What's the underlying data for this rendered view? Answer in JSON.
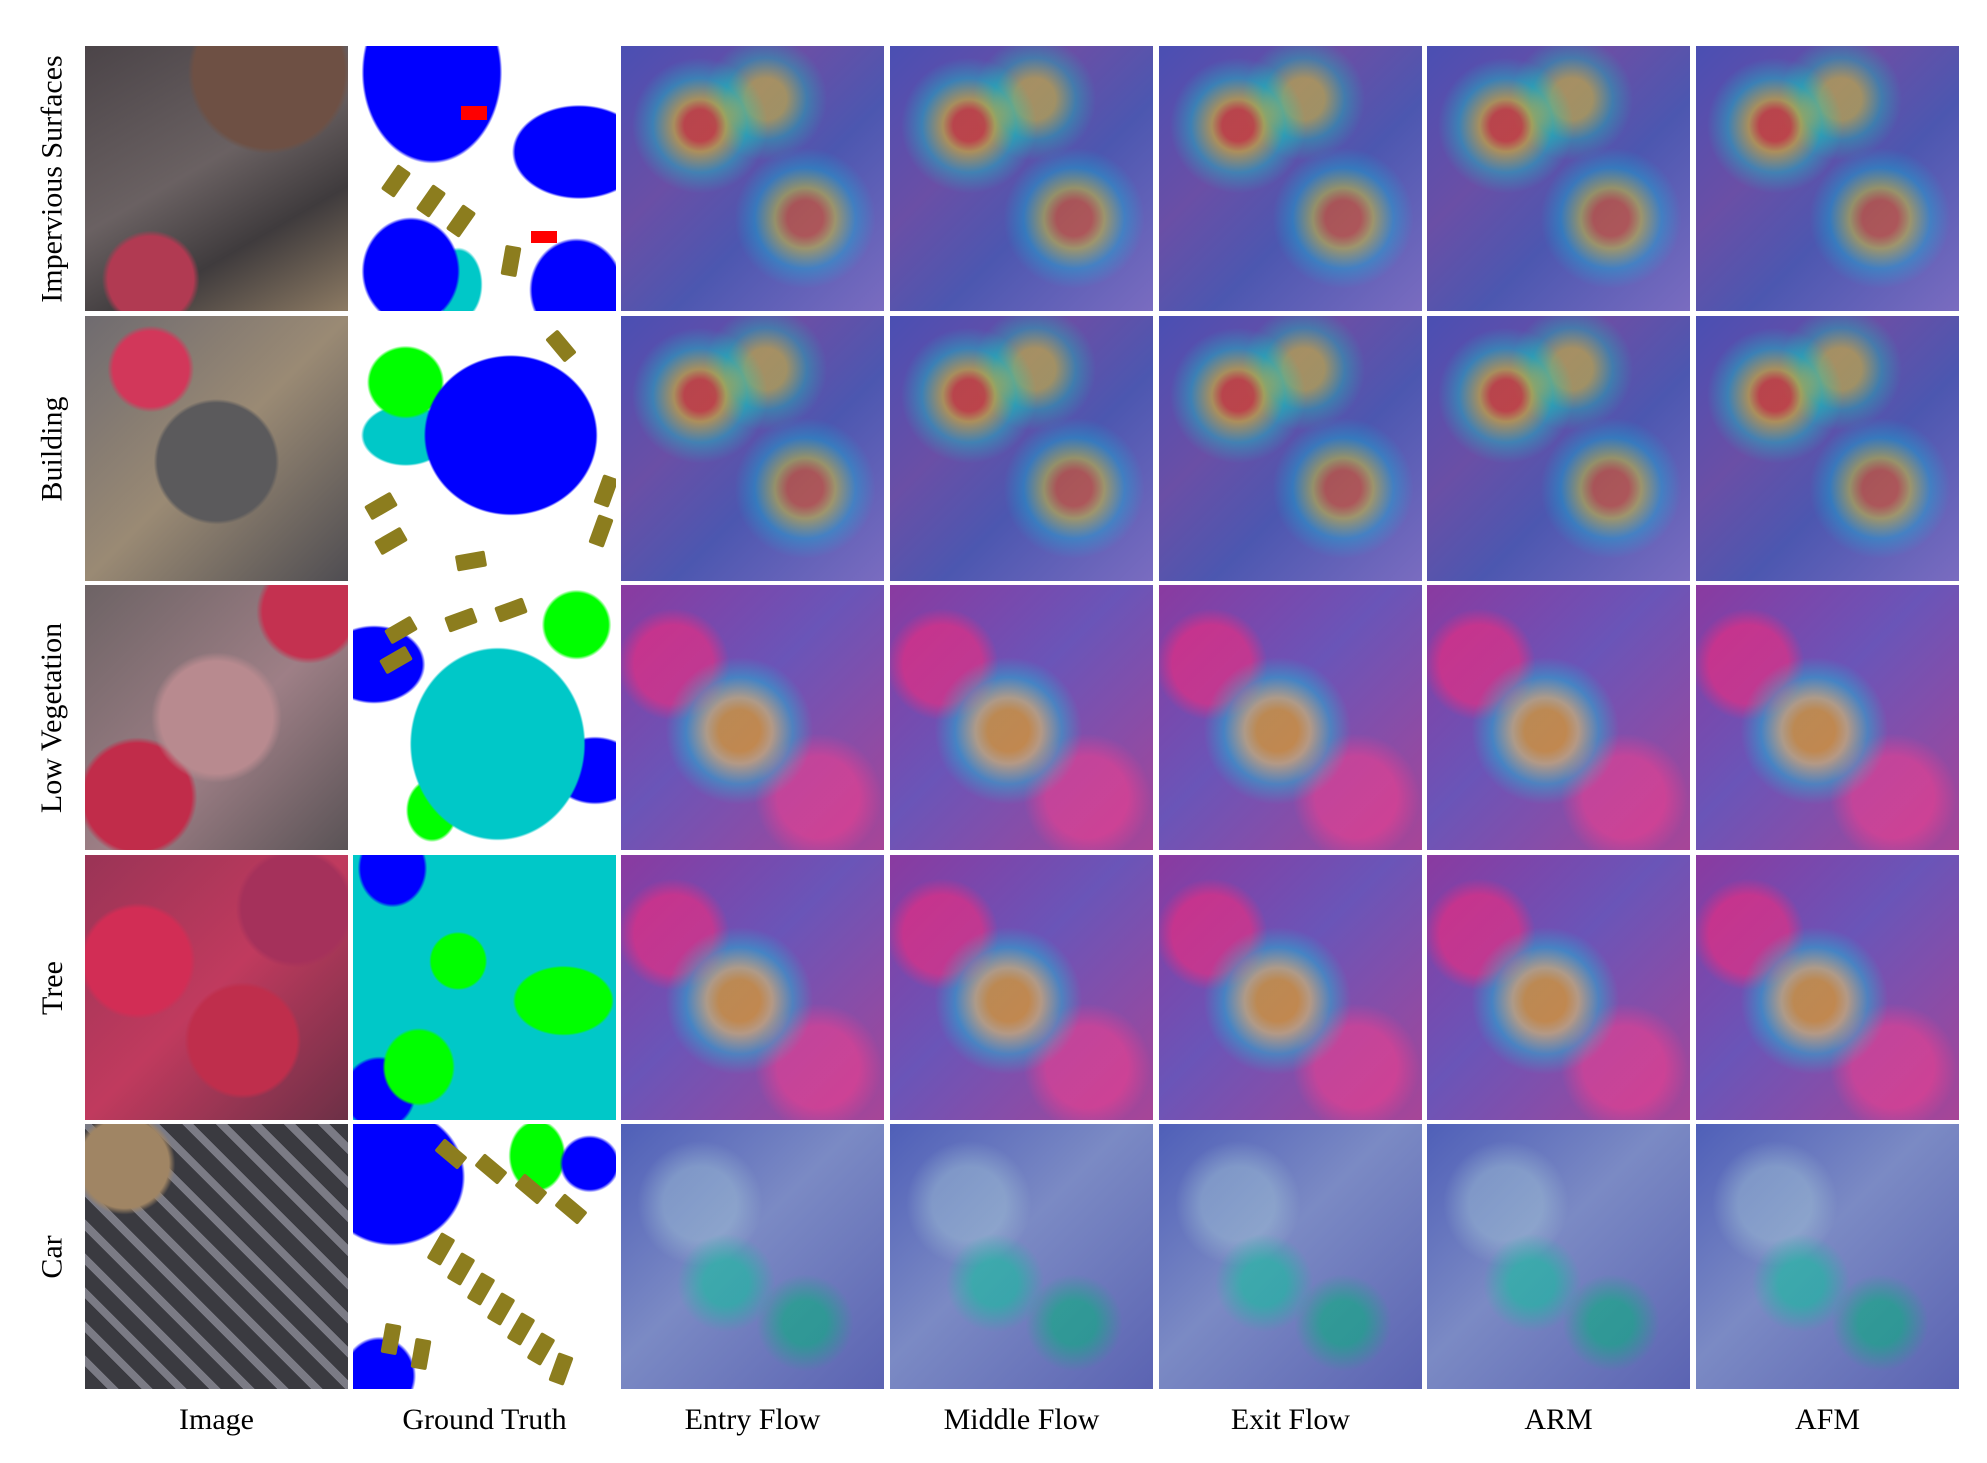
{
  "figure": {
    "row_labels": [
      "Impervious Surfaces",
      "Building",
      "Low Vegetation",
      "Tree",
      "Car"
    ],
    "column_labels": [
      "Image",
      "Ground Truth",
      "Entry Flow",
      "Middle Flow",
      "Exit Flow",
      "ARM",
      "AFM"
    ],
    "legend_colors": {
      "impervious_surfaces": "#ffffff",
      "building": "#0000ff",
      "low_vegetation": "#00c8c8",
      "tree": "#00ff00",
      "car": "#8c7d1e",
      "clutter": "#ff0000"
    }
  }
}
